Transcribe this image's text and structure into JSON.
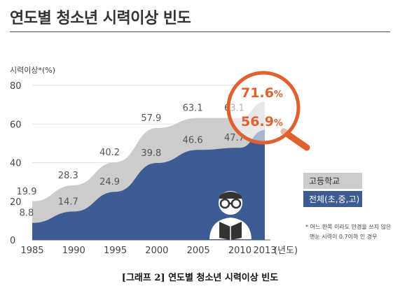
{
  "header": {
    "title": "연도별 청소년 시력이상 빈도"
  },
  "caption": "[그래프 2] 연도별 청소년 시력이상 빈도",
  "footnote": {
    "line1": "* 어느 한쪽 이라도 안경을 쓰지 않은",
    "line2": "맨눈 시력이 0.7이하 인 경우"
  },
  "magnifier": {
    "high_value": "71.6",
    "low_value": "56.9",
    "unit": "%"
  },
  "colors": {
    "high_school": "#cccccc",
    "total": "#3d5c93",
    "accent": "#e0602f"
  },
  "chart_data": {
    "type": "area",
    "ylabel": "시력이상*(%)",
    "xlabel": "(년도)",
    "ylim": [
      0,
      80
    ],
    "yticks": [
      0,
      20,
      40,
      60,
      80
    ],
    "grid": true,
    "legend": "right",
    "x": [
      "1985",
      "1990",
      "1995",
      "2000",
      "2005",
      "2010",
      "2013"
    ],
    "series": [
      {
        "name": "고등학교",
        "values": [
          19.9,
          28.3,
          40.2,
          57.9,
          63.1,
          63.1,
          71.6
        ],
        "labels": [
          "19.9",
          "28.3",
          "40.2",
          "57.9",
          "63.1",
          "63.1",
          ""
        ]
      },
      {
        "name": "전체(초,중,고)",
        "values": [
          8.8,
          14.7,
          24.9,
          39.8,
          46.6,
          47.7,
          56.9
        ],
        "labels": [
          "8.8",
          "14.7",
          "24.9",
          "39.8",
          "46.6",
          "47.7",
          ""
        ]
      }
    ]
  }
}
